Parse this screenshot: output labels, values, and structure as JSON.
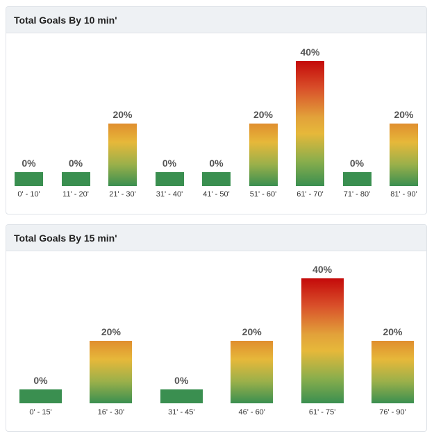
{
  "panels": [
    {
      "title": "Total Goals By 10 min'",
      "chart_data": {
        "type": "bar",
        "categories": [
          "0' - 10'",
          "11' - 20'",
          "21' - 30'",
          "31' - 40'",
          "41' - 50'",
          "51' - 60'",
          "61' - 70'",
          "71' - 80'",
          "81' - 90'"
        ],
        "values": [
          0,
          0,
          20,
          0,
          0,
          20,
          40,
          0,
          20
        ],
        "labels": [
          "0%",
          "0%",
          "20%",
          "0%",
          "0%",
          "20%",
          "40%",
          "0%",
          "20%"
        ],
        "ylim": [
          0,
          40
        ]
      }
    },
    {
      "title": "Total Goals By 15 min'",
      "chart_data": {
        "type": "bar",
        "categories": [
          "0' - 15'",
          "16' - 30'",
          "31' - 45'",
          "46' - 60'",
          "61' - 75'",
          "76' - 90'"
        ],
        "values": [
          0,
          20,
          0,
          20,
          40,
          20
        ],
        "labels": [
          "0%",
          "20%",
          "0%",
          "20%",
          "40%",
          "20%"
        ],
        "ylim": [
          0,
          40
        ]
      }
    }
  ],
  "colors": {
    "low": "#3a8f50",
    "mid": "#e6b83a",
    "high": "#c40a0a"
  }
}
